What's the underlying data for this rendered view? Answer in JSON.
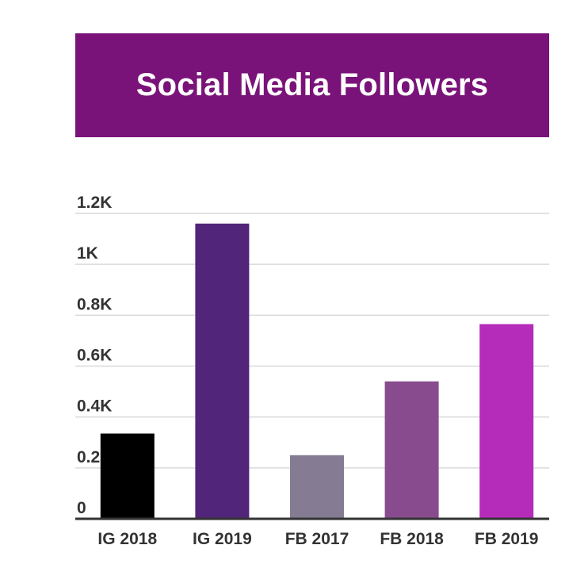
{
  "chart_data": {
    "type": "bar",
    "title": "Social Media Followers",
    "xlabel": "",
    "ylabel": "",
    "categories": [
      "IG 2018",
      "IG 2019",
      "FB 2017",
      "FB 2018",
      "FB 2019"
    ],
    "values": [
      335,
      1160,
      250,
      540,
      765
    ],
    "bar_colors": [
      "#000000",
      "#512579",
      "#857b93",
      "#884c8e",
      "#b52bba"
    ],
    "ylim": [
      0,
      1200
    ],
    "yticks": [
      0,
      200,
      400,
      600,
      800,
      1000,
      1200
    ],
    "ytick_labels": [
      "0",
      "0.2K",
      "0.4K",
      "0.6K",
      "0.8K",
      "1K",
      "1.2K"
    ],
    "grid": true,
    "legend": "none"
  },
  "colors": {
    "banner": "#7a1379",
    "gridline": "#d9d9d9",
    "axis": "#333333"
  }
}
